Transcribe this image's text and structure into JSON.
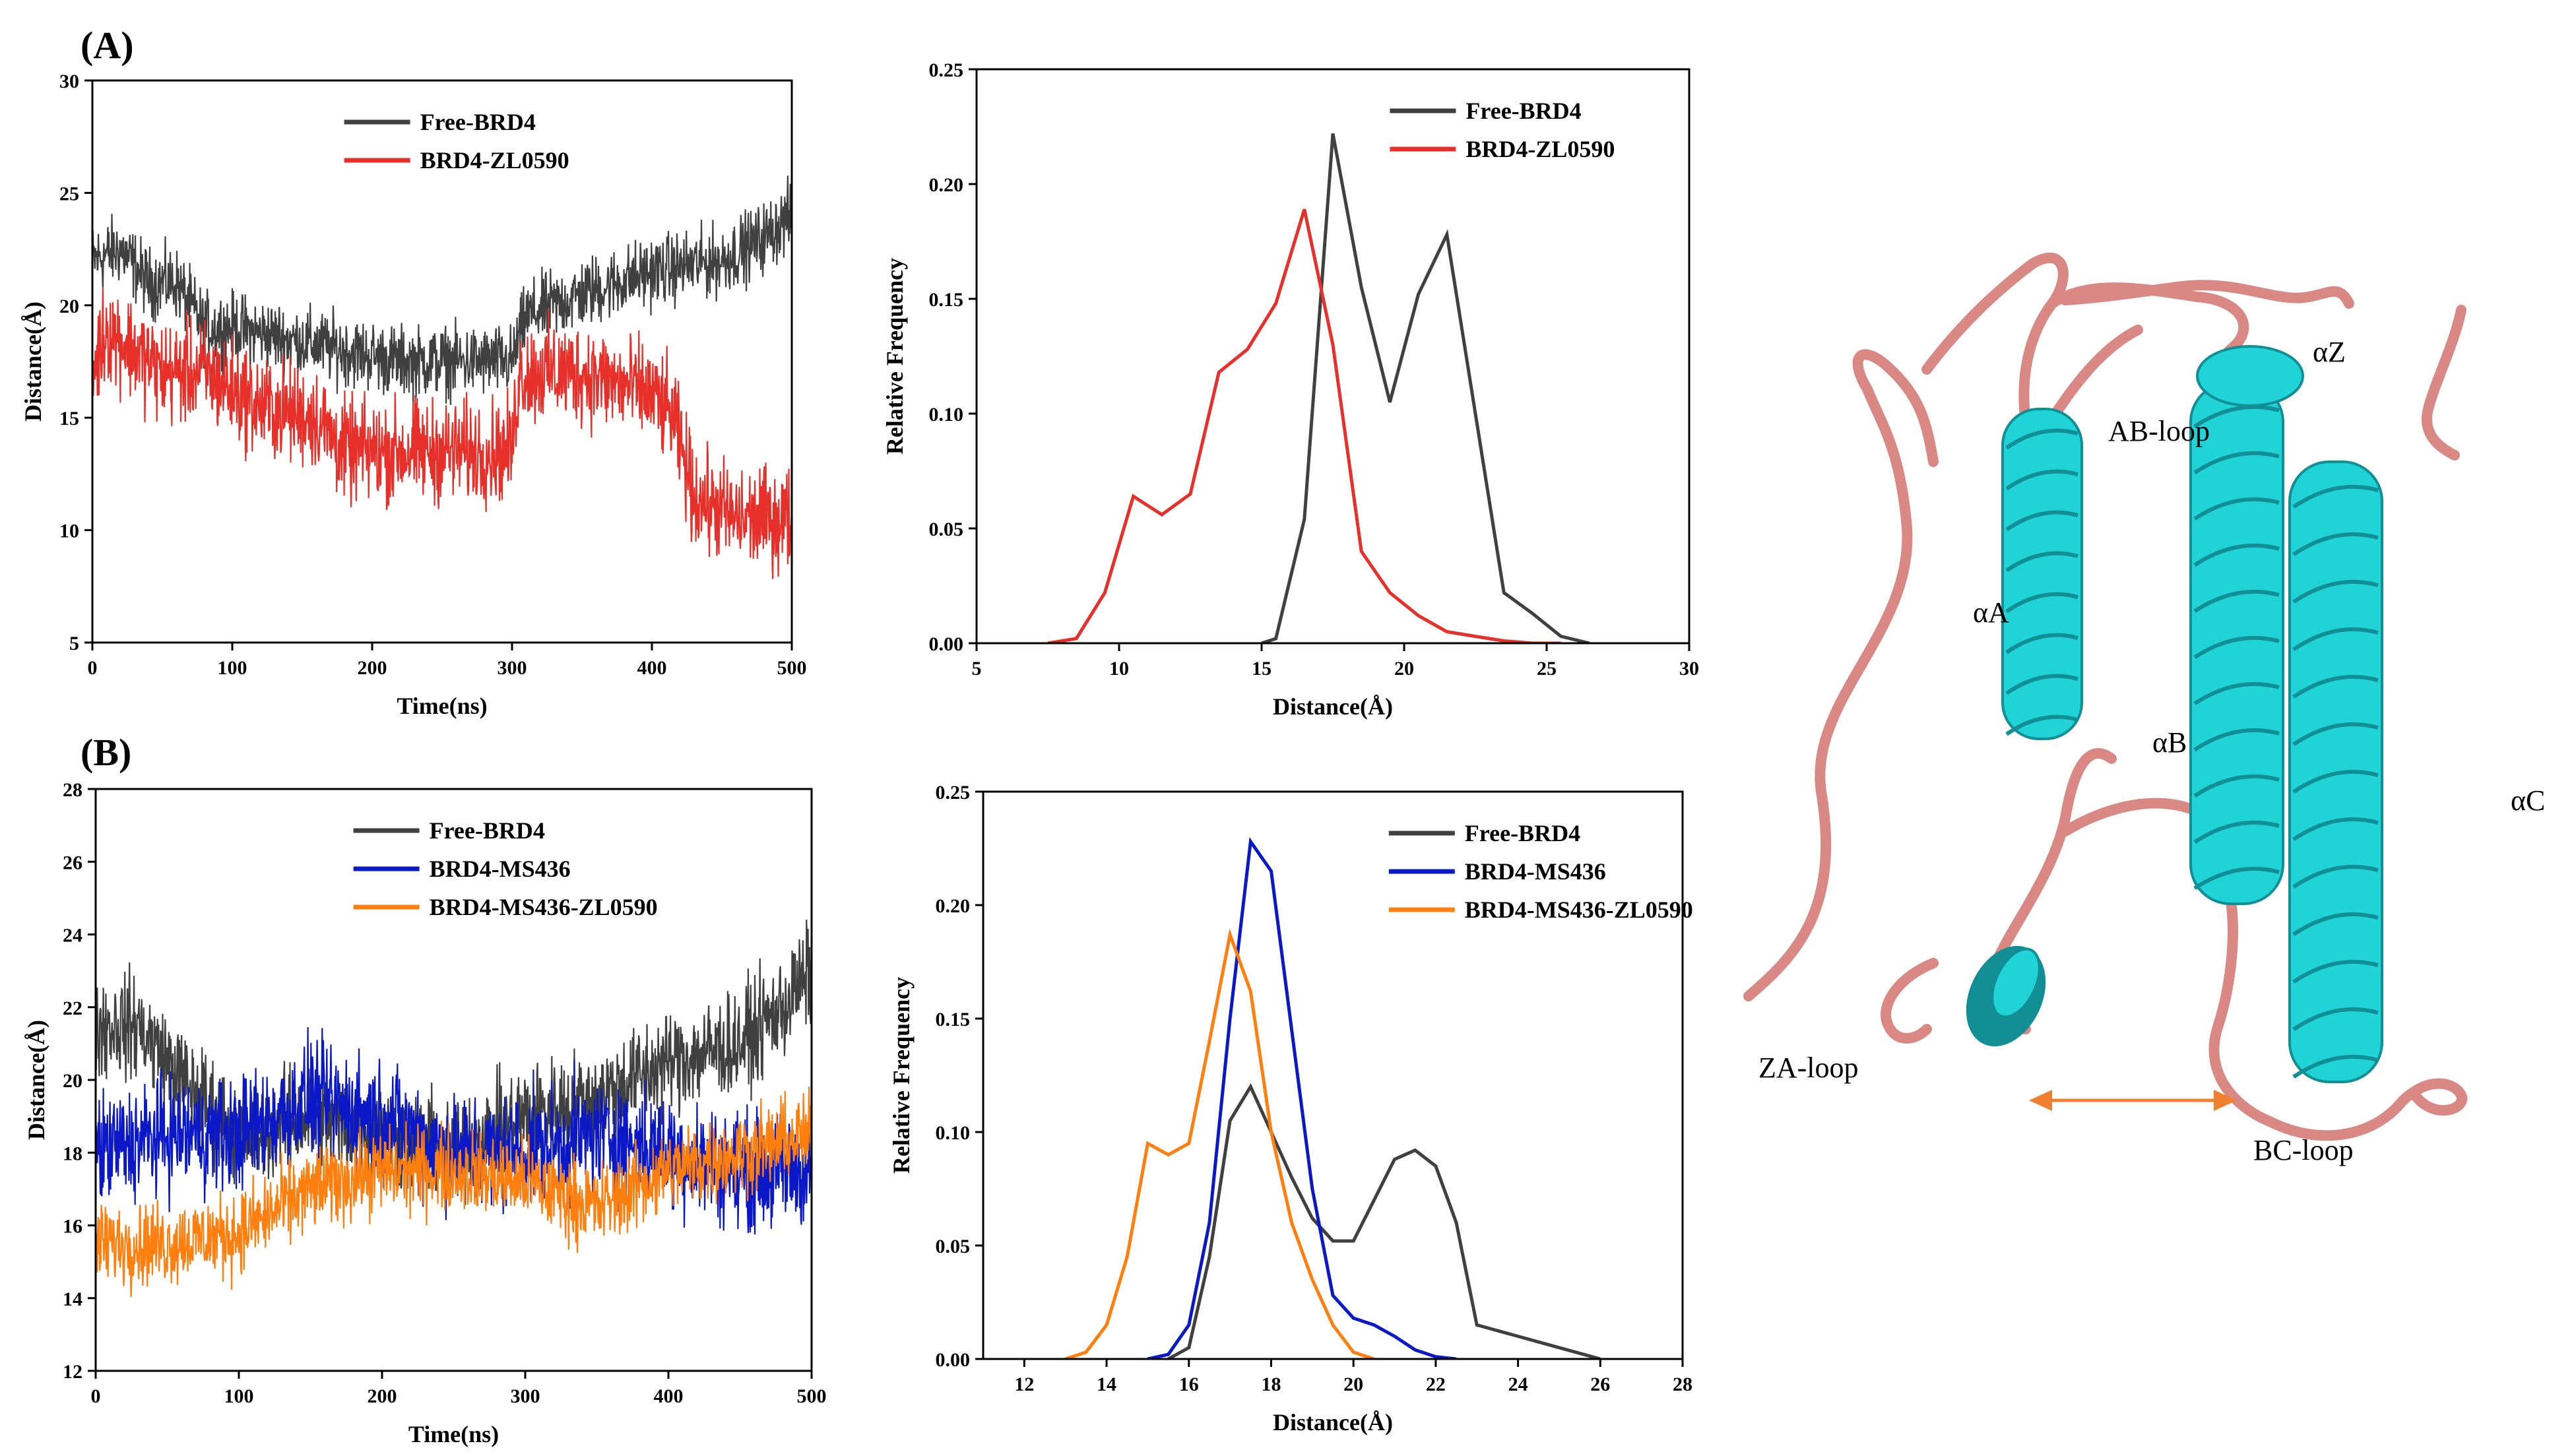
{
  "panel_labels": [
    "(A)",
    "(B)"
  ],
  "colors": {
    "free": "#404040",
    "zl0590": "#e8302a",
    "ms436": "#0a18c8",
    "ms436_zl0590": "#ff7f0e",
    "helix": "#1fd3d6",
    "helix_dark": "#118f95",
    "loop": "#d98884",
    "arrow": "#f08030"
  },
  "chart_data": [
    {
      "id": "A-time",
      "type": "line",
      "xlabel": "Time(ns)",
      "ylabel": "Distance(Å)",
      "xlim": [
        0,
        500
      ],
      "ylim": [
        5,
        30
      ],
      "xticks": [
        0,
        100,
        200,
        300,
        400,
        500
      ],
      "yticks": [
        5,
        10,
        15,
        20,
        25,
        30
      ],
      "legend_position": "top-center",
      "series": [
        {
          "name": "Free-BRD4",
          "color_key": "free",
          "noise": 1.1,
          "x": [
            0,
            20,
            40,
            60,
            80,
            100,
            140,
            180,
            220,
            260,
            300,
            310,
            350,
            400,
            450,
            480,
            500
          ],
          "y": [
            22,
            22.5,
            21,
            21,
            19,
            19,
            18.5,
            18,
            17.5,
            17.5,
            17.5,
            19.5,
            20.5,
            21.5,
            22,
            23,
            24
          ]
        },
        {
          "name": "BRD4-ZL0590",
          "color_key": "zl0590",
          "noise": 1.6,
          "x": [
            0,
            10,
            30,
            50,
            80,
            120,
            160,
            180,
            220,
            260,
            300,
            305,
            350,
            400,
            415,
            430,
            460,
            500
          ],
          "y": [
            17,
            19,
            18,
            17,
            17,
            15.5,
            15,
            13.5,
            13.5,
            13.5,
            13.5,
            17,
            17,
            16,
            15,
            11.5,
            10.5,
            10.5
          ]
        }
      ]
    },
    {
      "id": "A-hist",
      "type": "line",
      "xlabel": "Distance(Å)",
      "ylabel": "Relative Frequency",
      "xlim": [
        5,
        30
      ],
      "ylim": [
        0,
        0.25
      ],
      "xticks": [
        5,
        10,
        15,
        20,
        25,
        30
      ],
      "yticks": [
        0.0,
        0.05,
        0.1,
        0.15,
        0.2,
        0.25
      ],
      "legend_position": "top-right",
      "series": [
        {
          "name": "Free-BRD4",
          "color_key": "free",
          "x": [
            15.0,
            15.5,
            16.5,
            17.5,
            18.5,
            19.5,
            20.5,
            21.5,
            22.5,
            23.5,
            24.5,
            25.5,
            26.5
          ],
          "y": [
            0.0,
            0.002,
            0.054,
            0.222,
            0.155,
            0.105,
            0.152,
            0.178,
            0.1,
            0.022,
            0.013,
            0.003,
            0.0
          ]
        },
        {
          "name": "BRD4-ZL0590",
          "color_key": "zl0590",
          "x": [
            7.5,
            8.5,
            9.5,
            10.5,
            11.5,
            12.5,
            13.5,
            14.5,
            15.5,
            16.5,
            17.5,
            18.5,
            19.5,
            20.5,
            21.5,
            22.5,
            23.5,
            24.5,
            25.5
          ],
          "y": [
            0.0,
            0.002,
            0.022,
            0.064,
            0.056,
            0.065,
            0.118,
            0.128,
            0.148,
            0.189,
            0.13,
            0.04,
            0.022,
            0.012,
            0.005,
            0.003,
            0.001,
            0.0,
            0.0
          ]
        }
      ]
    },
    {
      "id": "B-time",
      "type": "line",
      "xlabel": "Time(ns)",
      "ylabel": "Distance(Å)",
      "xlim": [
        0,
        500
      ],
      "ylim": [
        12,
        28
      ],
      "xticks": [
        0,
        100,
        200,
        300,
        400,
        500
      ],
      "yticks": [
        12,
        14,
        16,
        18,
        20,
        22,
        24,
        26,
        28
      ],
      "legend_position": "top-center",
      "series": [
        {
          "name": "Free-BRD4",
          "color_key": "free",
          "noise": 1.0,
          "x": [
            0,
            30,
            60,
            100,
            150,
            200,
            250,
            300,
            350,
            400,
            450,
            480,
            500
          ],
          "y": [
            21.5,
            21.5,
            20,
            18.5,
            19,
            18.5,
            18,
            19,
            19.5,
            20.5,
            21,
            22,
            23
          ]
        },
        {
          "name": "BRD4-MS436",
          "color_key": "ms436",
          "noise": 1.1,
          "x": [
            0,
            50,
            100,
            150,
            200,
            250,
            300,
            350,
            400,
            450,
            500
          ],
          "y": [
            18,
            18.5,
            18.5,
            19.5,
            19,
            18,
            18,
            18.5,
            18,
            17.5,
            17.5
          ]
        },
        {
          "name": "BRD4-MS436-ZL0590",
          "color_key": "ms436_zl0590",
          "noise": 0.8,
          "x": [
            0,
            50,
            100,
            150,
            200,
            250,
            300,
            350,
            400,
            450,
            500
          ],
          "y": [
            15.5,
            15.5,
            15.8,
            17,
            17.5,
            17.5,
            17.2,
            16.5,
            17.5,
            18,
            18.5
          ]
        }
      ]
    },
    {
      "id": "B-hist",
      "type": "line",
      "xlabel": "Distance(Å)",
      "ylabel": "Relative Frequency",
      "xlim": [
        11,
        28
      ],
      "ylim": [
        0,
        0.25
      ],
      "xticks": [
        12,
        14,
        16,
        18,
        20,
        22,
        24,
        26,
        28
      ],
      "yticks": [
        0.0,
        0.05,
        0.1,
        0.15,
        0.2,
        0.25
      ],
      "legend_position": "top-right",
      "series": [
        {
          "name": "Free-BRD4",
          "color_key": "free",
          "x": [
            15.5,
            16.0,
            16.5,
            17.0,
            17.5,
            18.0,
            18.5,
            19.0,
            19.5,
            20.0,
            20.5,
            21.0,
            21.5,
            22.0,
            22.5,
            23.0,
            24.0,
            25.0,
            26.0
          ],
          "y": [
            0.0,
            0.005,
            0.045,
            0.105,
            0.12,
            0.1,
            0.08,
            0.062,
            0.052,
            0.052,
            0.07,
            0.088,
            0.092,
            0.085,
            0.06,
            0.015,
            0.01,
            0.005,
            0.0
          ]
        },
        {
          "name": "BRD4-MS436",
          "color_key": "ms436",
          "x": [
            15.0,
            15.5,
            16.0,
            16.5,
            17.0,
            17.5,
            18.0,
            18.5,
            19.0,
            19.5,
            20.0,
            20.5,
            21.0,
            21.5,
            22.0,
            22.5
          ],
          "y": [
            0.0,
            0.002,
            0.015,
            0.06,
            0.15,
            0.228,
            0.215,
            0.145,
            0.075,
            0.028,
            0.018,
            0.015,
            0.01,
            0.004,
            0.001,
            0.0
          ]
        },
        {
          "name": "BRD4-MS436-ZL0590",
          "color_key": "ms436_zl0590",
          "x": [
            13.0,
            13.5,
            14.0,
            14.5,
            15.0,
            15.5,
            16.0,
            16.5,
            17.0,
            17.5,
            18.0,
            18.5,
            19.0,
            19.5,
            20.0,
            20.5
          ],
          "y": [
            0.0,
            0.003,
            0.015,
            0.045,
            0.095,
            0.09,
            0.095,
            0.14,
            0.187,
            0.162,
            0.1,
            0.06,
            0.035,
            0.015,
            0.003,
            0.0
          ]
        }
      ]
    }
  ],
  "structure": {
    "labels": {
      "alpha_z": "αZ",
      "ab_loop": "AB-loop",
      "alpha_a": "αA",
      "alpha_b": "αB",
      "alpha_c": "αC",
      "za_loop": "ZA-loop",
      "bc_loop": "BC-loop"
    }
  }
}
